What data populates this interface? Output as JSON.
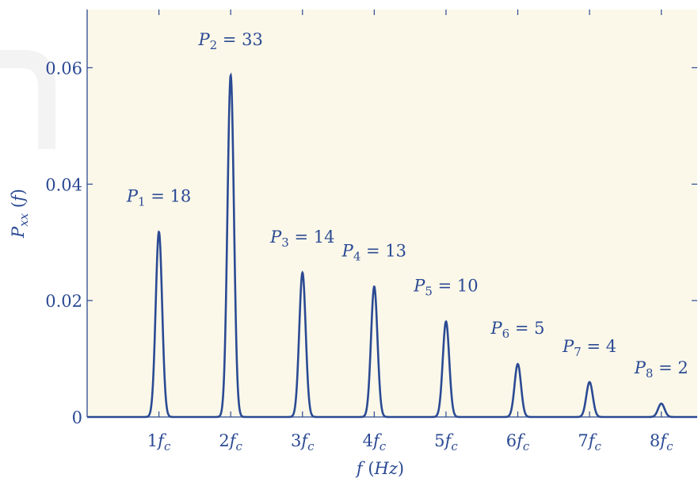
{
  "chart_data": {
    "type": "line",
    "xlabel": "f (Hz)",
    "ylabel": "Pxx (f)",
    "xlim": [
      0,
      8.5
    ],
    "ylim": [
      0,
      0.07
    ],
    "x_ticks": [
      1,
      2,
      3,
      4,
      5,
      6,
      7,
      8
    ],
    "x_tick_labels": [
      "1fc",
      "2fc",
      "3fc",
      "4fc",
      "5fc",
      "6fc",
      "7fc",
      "8fc"
    ],
    "y_ticks": [
      0,
      0.02,
      0.04,
      0.06
    ],
    "y_tick_labels": [
      "0",
      "0.02",
      "0.04",
      "0.06"
    ],
    "grid": false,
    "legend": "none",
    "peaks": [
      {
        "x": 1,
        "y": 0.0318,
        "label": "P1 = 18"
      },
      {
        "x": 2,
        "y": 0.0587,
        "label": "P2 = 33"
      },
      {
        "x": 3,
        "y": 0.0248,
        "label": "P3 = 14"
      },
      {
        "x": 4,
        "y": 0.0224,
        "label": "P4 = 13"
      },
      {
        "x": 5,
        "y": 0.0164,
        "label": "P5 = 10"
      },
      {
        "x": 6,
        "y": 0.0091,
        "label": "P6 = 5"
      },
      {
        "x": 7,
        "y": 0.006,
        "label": "P7 = 4"
      },
      {
        "x": 8,
        "y": 0.0023,
        "label": "P8 = 2"
      }
    ]
  },
  "colors": {
    "line": "#2b4a93",
    "plot_background": "#fbf8ea",
    "axis": "#2b4a93",
    "text": "#2b4a93"
  }
}
